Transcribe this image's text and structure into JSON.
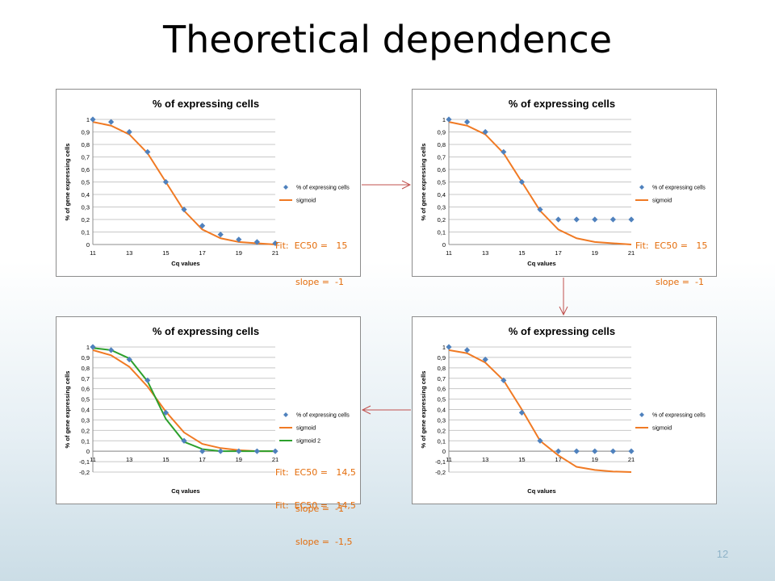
{
  "slide": {
    "title": "Theoretical dependence",
    "page_number": "12"
  },
  "fit_notes": {
    "p1": {
      "line1": "Fit:  EC50 =   15",
      "line2": "slope =  -1"
    },
    "p2": {
      "line1": "Fit:  EC50 =   15",
      "line2": "slope =  -1"
    },
    "p3a": {
      "line1": "Fit:  EC50 =   14,5",
      "line2": "slope =  -1"
    },
    "p3b": {
      "line1": "Fit:  EC50 =   14,5",
      "line2": "slope =  -1,5"
    }
  },
  "colors": {
    "points": "#4f81bd",
    "sigmoid": "#f07a24",
    "sigmoid2": "#2ca02c",
    "arrow": "#c0504d",
    "fit_text": "#e46c0a"
  },
  "chart_data": [
    {
      "id": "top-left",
      "type": "scatter",
      "title": "% of expressing cells",
      "xlabel": "Cq values",
      "ylabel": "% of gene expressing cells",
      "xlim": [
        11,
        21
      ],
      "ylim": [
        0,
        1
      ],
      "xticks": [
        "11",
        "13",
        "15",
        "17",
        "19",
        "21"
      ],
      "yticks": [
        "0",
        "0,1",
        "0,2",
        "0,3",
        "0,4",
        "0,5",
        "0,6",
        "0,7",
        "0,8",
        "0,9",
        "1"
      ],
      "legend_position": "right",
      "grid": true,
      "series": [
        {
          "name": "% of expressing cells",
          "kind": "points",
          "x": [
            11,
            12,
            13,
            14,
            15,
            16,
            17,
            18,
            19,
            20,
            21
          ],
          "y": [
            1,
            0.98,
            0.9,
            0.74,
            0.5,
            0.28,
            0.15,
            0.08,
            0.04,
            0.02,
            0.01
          ]
        },
        {
          "name": "sigmoid",
          "kind": "line",
          "x": [
            11,
            12,
            13,
            14,
            15,
            16,
            17,
            18,
            19,
            20,
            21
          ],
          "y": [
            0.98,
            0.95,
            0.88,
            0.73,
            0.5,
            0.27,
            0.12,
            0.05,
            0.02,
            0.01,
            0.0
          ]
        }
      ]
    },
    {
      "id": "top-right",
      "type": "scatter",
      "title": "% of expressing cells",
      "xlabel": "Cq values",
      "ylabel": "% of gene expressing cells",
      "xlim": [
        11,
        21
      ],
      "ylim": [
        0,
        1
      ],
      "xticks": [
        "11",
        "13",
        "15",
        "17",
        "19",
        "21"
      ],
      "yticks": [
        "0",
        "0,1",
        "0,2",
        "0,3",
        "0,4",
        "0,5",
        "0,6",
        "0,7",
        "0,8",
        "0,9",
        "1"
      ],
      "legend_position": "right",
      "grid": true,
      "series": [
        {
          "name": "% of expressing cells",
          "kind": "points",
          "x": [
            11,
            12,
            13,
            14,
            15,
            16,
            17,
            18,
            19,
            20,
            21
          ],
          "y": [
            1,
            0.98,
            0.9,
            0.74,
            0.5,
            0.28,
            0.2,
            0.2,
            0.2,
            0.2,
            0.2
          ]
        },
        {
          "name": "sigmoid",
          "kind": "line",
          "x": [
            11,
            12,
            13,
            14,
            15,
            16,
            17,
            18,
            19,
            20,
            21
          ],
          "y": [
            0.98,
            0.95,
            0.88,
            0.73,
            0.5,
            0.27,
            0.12,
            0.05,
            0.02,
            0.01,
            0.0
          ]
        }
      ]
    },
    {
      "id": "bottom-left",
      "type": "scatter",
      "title": "% of expressing cells",
      "xlabel": "Cq values",
      "ylabel": "% of gene expressing cells",
      "xlim": [
        11,
        21
      ],
      "ylim": [
        -0.2,
        1
      ],
      "xticks": [
        "11",
        "13",
        "15",
        "17",
        "19",
        "21"
      ],
      "yticks": [
        "-0,2",
        "-0,1",
        "0",
        "0,1",
        "0,2",
        "0,3",
        "0,4",
        "0,5",
        "0,6",
        "0,7",
        "0,8",
        "0,9",
        "1"
      ],
      "legend_position": "right",
      "grid": true,
      "series": [
        {
          "name": "% of expressing cells",
          "kind": "points",
          "x": [
            11,
            12,
            13,
            14,
            15,
            16,
            17,
            18,
            19,
            20,
            21
          ],
          "y": [
            1,
            0.97,
            0.88,
            0.68,
            0.37,
            0.1,
            0.0,
            0.0,
            0.0,
            0.0,
            0.0
          ]
        },
        {
          "name": "sigmoid",
          "kind": "line",
          "x": [
            11,
            12,
            13,
            14,
            15,
            16,
            17,
            18,
            19,
            20,
            21
          ],
          "y": [
            0.97,
            0.92,
            0.81,
            0.62,
            0.38,
            0.18,
            0.07,
            0.03,
            0.01,
            0.0,
            0.0
          ]
        },
        {
          "name": "sigmoid 2",
          "kind": "line2",
          "x": [
            11,
            12,
            13,
            14,
            15,
            16,
            17,
            18,
            19,
            20,
            21
          ],
          "y": [
            0.99,
            0.97,
            0.89,
            0.67,
            0.31,
            0.09,
            0.02,
            0.0,
            0.0,
            0.0,
            0.0
          ]
        }
      ]
    },
    {
      "id": "bottom-right",
      "type": "scatter",
      "title": "% of expressing cells",
      "xlabel": "Cq values",
      "ylabel": "% of gene expressing cells",
      "xlim": [
        11,
        21
      ],
      "ylim": [
        -0.2,
        1
      ],
      "xticks": [
        "11",
        "13",
        "15",
        "17",
        "19",
        "21"
      ],
      "yticks": [
        "-0,2",
        "-0,1",
        "0",
        "0,1",
        "0,2",
        "0,3",
        "0,4",
        "0,5",
        "0,6",
        "0,7",
        "0,8",
        "0,9",
        "1"
      ],
      "legend_position": "right",
      "grid": true,
      "series": [
        {
          "name": "% of expressing cells",
          "kind": "points",
          "x": [
            11,
            12,
            13,
            14,
            15,
            16,
            17,
            18,
            19,
            20,
            21
          ],
          "y": [
            1,
            0.97,
            0.88,
            0.68,
            0.37,
            0.1,
            0.0,
            0.0,
            0.0,
            0.0,
            0.0
          ]
        },
        {
          "name": "sigmoid",
          "kind": "line",
          "x": [
            11,
            12,
            13,
            14,
            15,
            16,
            17,
            18,
            19,
            20,
            21
          ],
          "y": [
            0.97,
            0.94,
            0.85,
            0.68,
            0.4,
            0.1,
            -0.04,
            -0.15,
            -0.18,
            -0.195,
            -0.2
          ]
        }
      ]
    }
  ]
}
